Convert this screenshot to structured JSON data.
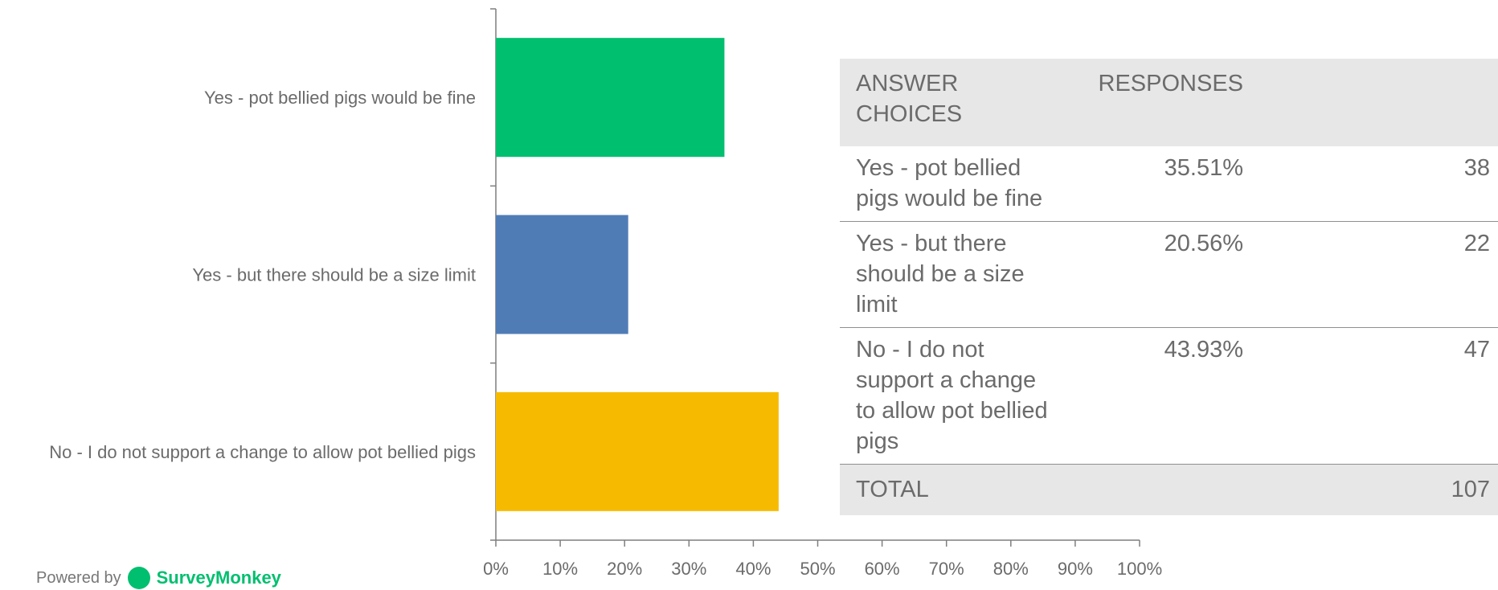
{
  "chart_data": {
    "type": "bar",
    "orientation": "horizontal",
    "categories": [
      "Yes - pot bellied pigs would be fine",
      "Yes - but there should be a size limit",
      "No - I do not support a change to allow pot bellied pigs"
    ],
    "values": [
      35.51,
      20.56,
      43.93
    ],
    "colors": [
      "#00bf6f",
      "#507cb6",
      "#f6bb00"
    ],
    "xlim": [
      0,
      100
    ],
    "xticks": [
      "0%",
      "10%",
      "20%",
      "30%",
      "40%",
      "50%",
      "60%",
      "70%",
      "80%",
      "90%",
      "100%"
    ],
    "grid": false,
    "legend": "none"
  },
  "table": {
    "headers": [
      "ANSWER CHOICES",
      "RESPONSES",
      ""
    ],
    "rows": [
      {
        "choice": "Yes - pot bellied pigs would be fine",
        "percent": "35.51%",
        "count": "38"
      },
      {
        "choice": "Yes - but there should be a size limit",
        "percent": "20.56%",
        "count": "22"
      },
      {
        "choice": "No - I do not support a change to allow pot bellied pigs",
        "percent": "43.93%",
        "count": "47"
      }
    ],
    "total_label": "TOTAL",
    "total_value": "107"
  },
  "branding": {
    "prefix": "Powered by",
    "name": "SurveyMonkey",
    "icon": "surveymonkey-logo-icon"
  }
}
